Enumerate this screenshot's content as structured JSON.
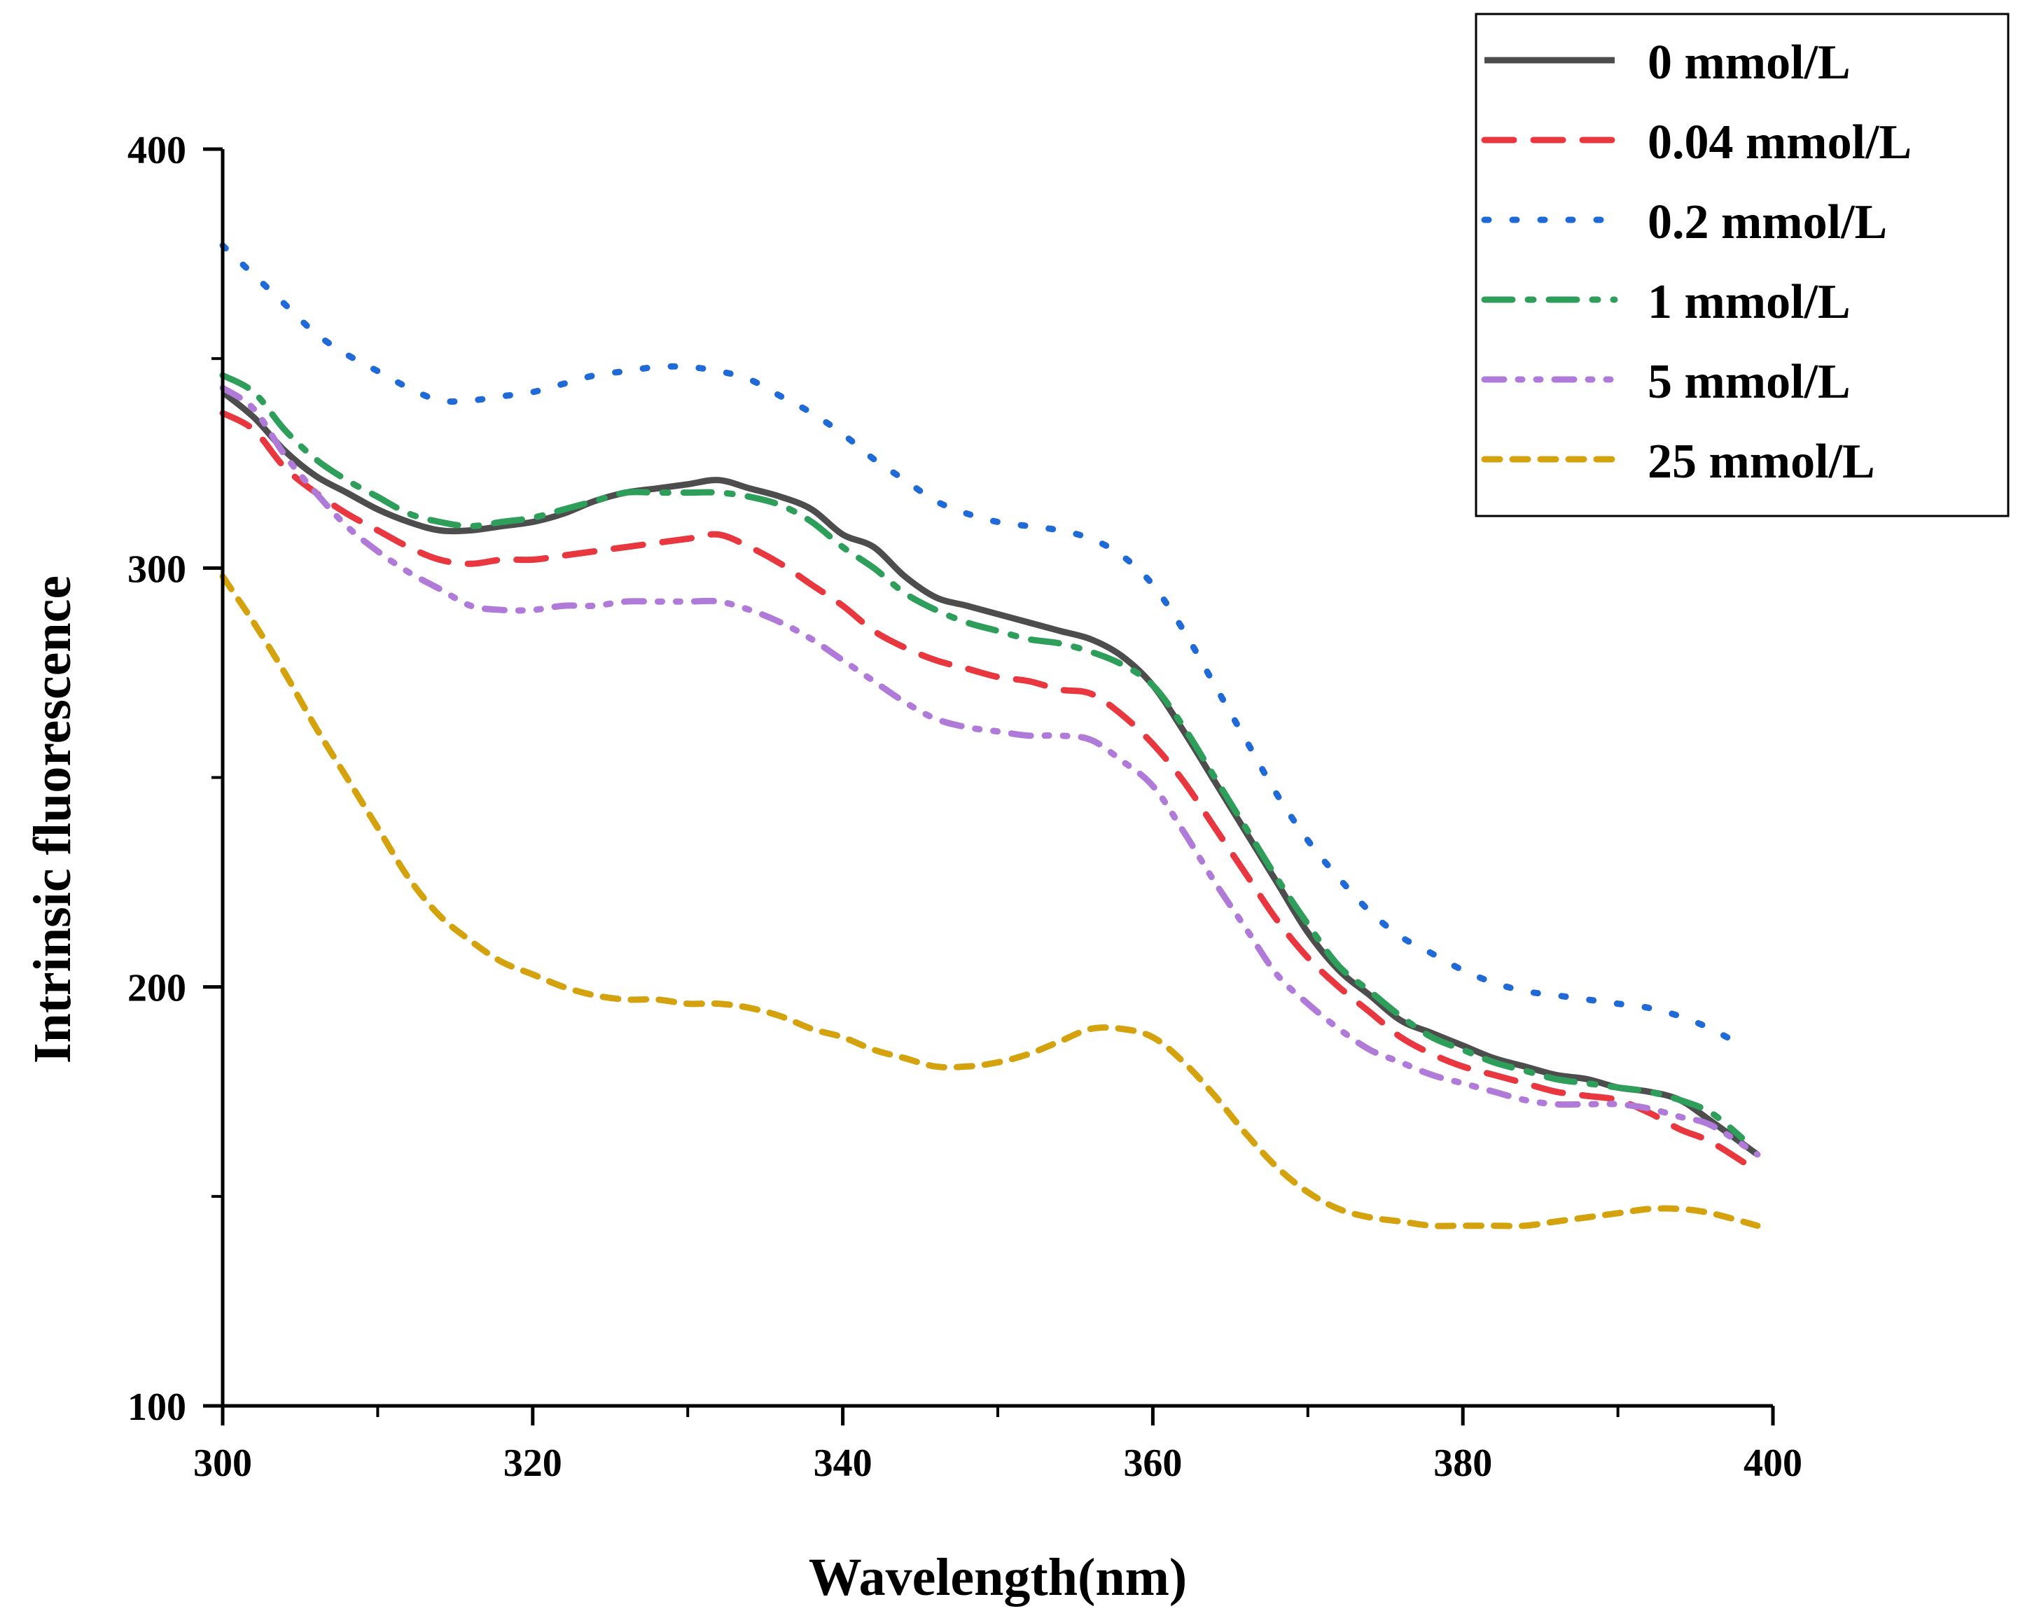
{
  "chart_data": {
    "type": "line",
    "title": "",
    "xlabel": "Wavelength(nm)",
    "ylabel": "Intrinsic fluorescence",
    "xlim": [
      300,
      400
    ],
    "ylim": [
      100,
      400
    ],
    "xticks": [
      300,
      320,
      340,
      360,
      380,
      400
    ],
    "yticks": [
      100,
      200,
      300,
      400
    ],
    "xtick_labels": [
      "300",
      "320",
      "340",
      "360",
      "380",
      "400"
    ],
    "ytick_labels": [
      "100",
      "200",
      "300",
      "400"
    ],
    "grid": false,
    "legend_position": "top-right",
    "series": [
      {
        "name": "0 mmol/L",
        "color": "#4d4d4d",
        "style": "solid",
        "x": [
          300,
          302,
          304,
          306,
          308,
          310,
          312,
          314,
          316,
          318,
          320,
          322,
          324,
          326,
          328,
          330,
          332,
          334,
          336,
          338,
          340,
          342,
          344,
          346,
          348,
          350,
          352,
          354,
          356,
          358,
          360,
          362,
          364,
          366,
          368,
          370,
          372,
          374,
          376,
          378,
          380,
          382,
          384,
          386,
          388,
          390,
          392,
          394,
          396,
          399
        ],
        "y": [
          342,
          336,
          328,
          322,
          318,
          314,
          311,
          309,
          309,
          310,
          311,
          313,
          316,
          318,
          319,
          320,
          321,
          319,
          317,
          314,
          308,
          305,
          298,
          293,
          291,
          289,
          287,
          285,
          283,
          279,
          272,
          261,
          249,
          237,
          225,
          213,
          204,
          198,
          192,
          189,
          186,
          183,
          181,
          179,
          178,
          176,
          175,
          173,
          168,
          160
        ]
      },
      {
        "name": "0.04 mmol/L",
        "color": "#e8373f",
        "style": "dashed",
        "x": [
          300,
          302,
          304,
          306,
          308,
          310,
          312,
          314,
          316,
          318,
          320,
          322,
          324,
          326,
          328,
          330,
          332,
          334,
          336,
          338,
          340,
          342,
          344,
          346,
          348,
          350,
          352,
          354,
          356,
          358,
          360,
          362,
          364,
          366,
          368,
          370,
          372,
          374,
          376,
          378,
          380,
          382,
          384,
          386,
          388,
          390,
          392,
          394,
          396,
          399
        ],
        "y": [
          337,
          333,
          324,
          318,
          313,
          309,
          305,
          302,
          301,
          302,
          302,
          303,
          304,
          305,
          306,
          307,
          308,
          305,
          301,
          296,
          291,
          285,
          281,
          278,
          276,
          274,
          273,
          271,
          270,
          265,
          258,
          249,
          238,
          227,
          216,
          207,
          200,
          194,
          188,
          184,
          181,
          179,
          177,
          175,
          174,
          173,
          170,
          166,
          163,
          156
        ]
      },
      {
        "name": "0.2 mmol/L",
        "color": "#1f6ad6",
        "style": "dotted",
        "x": [
          300,
          302,
          304,
          306,
          308,
          310,
          312,
          314,
          316,
          318,
          320,
          322,
          324,
          326,
          328,
          330,
          332,
          334,
          336,
          338,
          340,
          342,
          344,
          346,
          348,
          350,
          352,
          354,
          356,
          358,
          360,
          362,
          364,
          366,
          368,
          370,
          372,
          374,
          376,
          378,
          380,
          382,
          384,
          386,
          388,
          390,
          392,
          394,
          396,
          398
        ],
        "y": [
          377,
          370,
          363,
          356,
          351,
          347,
          343,
          340,
          340,
          341,
          342,
          344,
          346,
          347,
          348,
          348,
          347,
          345,
          341,
          337,
          332,
          326,
          321,
          316,
          313,
          311,
          310,
          309,
          307,
          303,
          296,
          285,
          272,
          259,
          246,
          235,
          226,
          218,
          212,
          208,
          204,
          201,
          199,
          198,
          197,
          196,
          195,
          193,
          190,
          186
        ]
      },
      {
        "name": "1 mmol/L",
        "color": "#2e9e5b",
        "style": "dashdot",
        "x": [
          300,
          302,
          304,
          306,
          308,
          310,
          312,
          314,
          316,
          318,
          320,
          322,
          324,
          326,
          328,
          330,
          332,
          334,
          336,
          338,
          340,
          342,
          344,
          346,
          348,
          350,
          352,
          354,
          356,
          358,
          360,
          362,
          364,
          366,
          368,
          370,
          372,
          374,
          376,
          378,
          380,
          382,
          384,
          386,
          388,
          390,
          392,
          394,
          396,
          398
        ],
        "y": [
          346,
          342,
          333,
          326,
          321,
          317,
          313,
          311,
          310,
          311,
          312,
          314,
          316,
          318,
          318,
          318,
          318,
          317,
          315,
          311,
          305,
          300,
          294,
          290,
          287,
          285,
          283,
          282,
          280,
          277,
          272,
          262,
          250,
          238,
          226,
          215,
          205,
          199,
          193,
          188,
          185,
          182,
          180,
          178,
          177,
          176,
          175,
          173,
          170,
          164
        ]
      },
      {
        "name": "5 mmol/L",
        "color": "#b07ad9",
        "style": "dashdotdot",
        "x": [
          300,
          302,
          304,
          306,
          308,
          310,
          312,
          314,
          316,
          318,
          320,
          322,
          324,
          326,
          328,
          330,
          332,
          334,
          336,
          338,
          340,
          342,
          344,
          346,
          348,
          350,
          352,
          354,
          356,
          358,
          360,
          362,
          364,
          366,
          368,
          370,
          372,
          374,
          376,
          378,
          380,
          382,
          384,
          386,
          388,
          390,
          392,
          394,
          396,
          399
        ],
        "y": [
          343,
          338,
          327,
          318,
          310,
          304,
          299,
          295,
          291,
          290,
          290,
          291,
          291,
          292,
          292,
          292,
          292,
          290,
          287,
          283,
          278,
          273,
          268,
          264,
          262,
          261,
          260,
          260,
          259,
          254,
          248,
          237,
          225,
          214,
          203,
          196,
          190,
          185,
          182,
          179,
          177,
          175,
          173,
          172,
          172,
          172,
          171,
          169,
          167,
          160
        ]
      },
      {
        "name": "25 mmol/L",
        "color": "#d4a20d",
        "style": "shortdash",
        "x": [
          300,
          302,
          304,
          306,
          308,
          310,
          312,
          314,
          316,
          318,
          320,
          322,
          324,
          326,
          328,
          330,
          332,
          334,
          336,
          338,
          340,
          342,
          344,
          346,
          348,
          350,
          352,
          354,
          356,
          358,
          360,
          362,
          364,
          366,
          368,
          370,
          372,
          374,
          376,
          378,
          380,
          382,
          384,
          386,
          388,
          390,
          392,
          394,
          396,
          399
        ],
        "y": [
          298,
          287,
          275,
          262,
          250,
          238,
          226,
          217,
          211,
          206,
          203,
          200,
          198,
          197,
          197,
          196,
          196,
          195,
          193,
          190,
          188,
          185,
          183,
          181,
          181,
          182,
          184,
          187,
          190,
          190,
          188,
          182,
          174,
          165,
          157,
          151,
          147,
          145,
          144,
          143,
          143,
          143,
          143,
          144,
          145,
          146,
          147,
          147,
          146,
          143
        ]
      }
    ]
  }
}
